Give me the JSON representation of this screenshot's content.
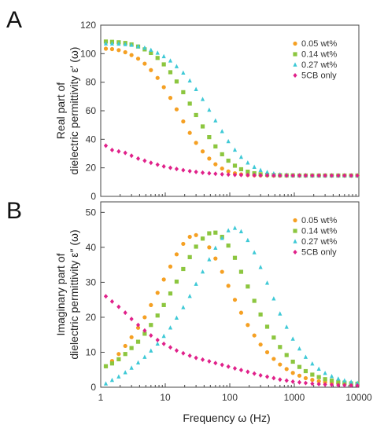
{
  "figure": {
    "panels": [
      "A",
      "B"
    ],
    "xlabel": "Frequency ω (Hz)"
  },
  "colors": {
    "0.05 wt%": "#f5a023",
    "0.14 wt%": "#8cc63f",
    "0.27 wt%": "#3ec9d6",
    "5CB only": "#e0218a"
  },
  "chart_data": [
    {
      "type": "scatter",
      "panel": "A",
      "ylabel_lines": [
        "Real part of",
        "dielectric permittivity ε′ (ω)"
      ],
      "xscale": "log",
      "xlim": [
        1,
        10000
      ],
      "ylim": [
        0,
        120
      ],
      "xticks": [
        "1",
        "10",
        "100",
        "1000",
        "10000"
      ],
      "yticks": [
        "0",
        "20",
        "40",
        "60",
        "80",
        "100",
        "120"
      ],
      "legend_position": "top-right",
      "grid": false,
      "series": [
        {
          "name": "0.05 wt%",
          "marker": "circle",
          "x": [
            1.2,
            1.5,
            1.9,
            2.4,
            3,
            3.8,
            4.8,
            6,
            7.6,
            9.5,
            12,
            15,
            19,
            24,
            30,
            38,
            48,
            60,
            76,
            95,
            120,
            150,
            190,
            240,
            300,
            380,
            480,
            600,
            760,
            950,
            1200,
            1500,
            1900,
            2400,
            3000,
            3800,
            4800,
            6000,
            7600,
            9500
          ],
          "y": [
            103.5,
            103.2,
            102.5,
            101,
            99,
            96.5,
            93,
            88.5,
            83,
            76.5,
            69,
            61,
            52.5,
            44.5,
            37.5,
            31.5,
            26.5,
            22.5,
            19.5,
            17.5,
            16.2,
            15.4,
            15,
            14.8,
            14.7,
            14.7,
            14.6,
            14.6,
            14.6,
            14.6,
            14.6,
            14.6,
            14.6,
            14.6,
            14.6,
            14.6,
            14.6,
            14.6,
            14.6,
            14.6
          ]
        },
        {
          "name": "0.14 wt%",
          "marker": "square",
          "x": [
            1.2,
            1.5,
            1.9,
            2.4,
            3,
            3.8,
            4.8,
            6,
            7.6,
            9.5,
            12,
            15,
            19,
            24,
            30,
            38,
            48,
            60,
            76,
            95,
            120,
            150,
            190,
            240,
            300,
            380,
            480,
            600,
            760,
            950,
            1200,
            1500,
            1900,
            2400,
            3000,
            3800,
            4800,
            6000,
            7600,
            9500
          ],
          "y": [
            108.5,
            108.3,
            108,
            107.5,
            106.5,
            105,
            103,
            100.5,
            97,
            92.5,
            87,
            80.5,
            73,
            65,
            57,
            49,
            41.5,
            35,
            29.5,
            25,
            21.5,
            19,
            17.3,
            16.2,
            15.5,
            15.1,
            14.9,
            14.8,
            14.7,
            14.7,
            14.6,
            14.6,
            14.6,
            14.6,
            14.6,
            14.6,
            14.6,
            14.6,
            14.6,
            14.6
          ]
        },
        {
          "name": "0.27 wt%",
          "marker": "triangle",
          "x": [
            1.2,
            1.5,
            1.9,
            2.4,
            3,
            3.8,
            4.8,
            6,
            7.6,
            9.5,
            12,
            15,
            19,
            24,
            30,
            38,
            48,
            60,
            76,
            95,
            120,
            150,
            190,
            240,
            300,
            380,
            480,
            600,
            760,
            950,
            1200,
            1500,
            1900,
            2400,
            3000,
            3800,
            4800,
            6000,
            7600,
            9500
          ],
          "y": [
            107,
            107,
            106.8,
            106.5,
            106,
            105,
            104,
            102.5,
            100.5,
            98,
            95,
            91,
            86.5,
            81,
            75,
            68,
            60.5,
            53,
            45.5,
            38.5,
            32.5,
            27.5,
            23.5,
            20.5,
            18.3,
            16.9,
            15.9,
            15.3,
            15,
            14.8,
            14.7,
            14.7,
            14.6,
            14.6,
            14.6,
            14.6,
            14.6,
            14.6,
            14.6,
            14.6
          ]
        },
        {
          "name": "5CB only",
          "marker": "diamond",
          "x": [
            1.2,
            1.5,
            1.9,
            2.4,
            3,
            3.8,
            4.8,
            6,
            7.6,
            9.5,
            12,
            15,
            19,
            24,
            30,
            38,
            48,
            60,
            76,
            95,
            120,
            150,
            190,
            240,
            300,
            380,
            480,
            600,
            760,
            950,
            1200,
            1500,
            1900,
            2400,
            3000,
            3800,
            4800,
            6000,
            7600,
            9500
          ],
          "y": [
            35.5,
            32.5,
            31.5,
            30.5,
            28.5,
            26.5,
            25,
            23.5,
            22.2,
            21,
            20,
            19.2,
            18.4,
            17.7,
            17.1,
            16.6,
            16.2,
            15.8,
            15.5,
            15.3,
            15.1,
            15,
            14.9,
            14.8,
            14.7,
            14.7,
            14.6,
            14.6,
            14.6,
            14.6,
            14.6,
            14.6,
            14.6,
            14.6,
            14.6,
            14.6,
            14.6,
            14.6,
            14.6,
            14.6
          ]
        }
      ]
    },
    {
      "type": "scatter",
      "panel": "B",
      "ylabel_lines": [
        "Imaginary part of",
        "dielectric permittivity ε″ (ω)"
      ],
      "xscale": "log",
      "xlim": [
        1,
        10000
      ],
      "ylim": [
        0,
        53
      ],
      "xticks": [
        "1",
        "10",
        "100",
        "1000",
        "10000"
      ],
      "yticks": [
        "0",
        "10",
        "20",
        "30",
        "40",
        "50"
      ],
      "legend_position": "top-right",
      "grid": false,
      "series": [
        {
          "name": "0.05 wt%",
          "marker": "circle",
          "x": [
            1.2,
            1.5,
            1.9,
            2.4,
            3,
            3.8,
            4.8,
            6,
            7.6,
            9.5,
            12,
            15,
            19,
            24,
            30,
            38,
            48,
            60,
            76,
            95,
            120,
            150,
            190,
            240,
            300,
            380,
            480,
            600,
            760,
            950,
            1200,
            1500,
            1900,
            2400,
            3000,
            3800,
            4800,
            6000,
            7600,
            9500
          ],
          "y": [
            6,
            7.5,
            9.5,
            11.8,
            14.3,
            17,
            20,
            23.5,
            27,
            30.8,
            34.5,
            38,
            41,
            43,
            43.5,
            42.5,
            40,
            36.8,
            33,
            29,
            25,
            21.3,
            17.8,
            14.8,
            12.2,
            10,
            8.1,
            6.5,
            5.2,
            4.1,
            3.3,
            2.6,
            2.1,
            1.7,
            1.4,
            1.2,
            1,
            0.9,
            0.8,
            0.7
          ]
        },
        {
          "name": "0.14 wt%",
          "marker": "square",
          "x": [
            1.2,
            1.5,
            1.9,
            2.4,
            3,
            3.8,
            4.8,
            6,
            7.6,
            9.5,
            12,
            15,
            19,
            24,
            30,
            38,
            48,
            60,
            76,
            95,
            120,
            150,
            190,
            240,
            300,
            380,
            480,
            600,
            760,
            950,
            1200,
            1500,
            1900,
            2400,
            3000,
            3800,
            4800,
            6000,
            7600,
            9500
          ],
          "y": [
            6,
            6.8,
            8,
            9.5,
            11.2,
            13,
            15.3,
            17.8,
            20.5,
            23.5,
            26.8,
            30.2,
            33.8,
            37.2,
            40.2,
            42.5,
            44,
            44.2,
            43,
            40.5,
            37,
            33,
            28.8,
            24.7,
            20.8,
            17.3,
            14.2,
            11.5,
            9.2,
            7.3,
            5.8,
            4.6,
            3.6,
            2.9,
            2.3,
            1.9,
            1.5,
            1.3,
            1.1,
            1
          ]
        },
        {
          "name": "0.27 wt%",
          "marker": "triangle",
          "x": [
            1.2,
            1.5,
            1.9,
            2.4,
            3,
            3.8,
            4.8,
            6,
            7.6,
            9.5,
            12,
            15,
            19,
            24,
            30,
            38,
            48,
            60,
            76,
            95,
            120,
            150,
            190,
            240,
            300,
            380,
            480,
            600,
            760,
            950,
            1200,
            1500,
            1900,
            2400,
            3000,
            3800,
            4800,
            6000,
            7600,
            9500
          ],
          "y": [
            1,
            2,
            3,
            4.2,
            5.5,
            7,
            8.6,
            10.4,
            12.4,
            14.6,
            17,
            19.8,
            22.8,
            26,
            29.5,
            33,
            36.5,
            39.8,
            42.6,
            44.8,
            45.5,
            44.5,
            42,
            38.5,
            34.3,
            29.8,
            25.3,
            21,
            17.2,
            13.8,
            11,
            8.6,
            6.7,
            5.2,
            4,
            3.1,
            2.4,
            1.9,
            1.5,
            1.2
          ]
        },
        {
          "name": "5CB only",
          "marker": "diamond",
          "x": [
            1.2,
            1.5,
            1.9,
            2.4,
            3,
            3.8,
            4.8,
            6,
            7.6,
            9.5,
            12,
            15,
            19,
            24,
            30,
            38,
            48,
            60,
            76,
            95,
            120,
            150,
            190,
            240,
            300,
            380,
            480,
            600,
            760,
            950,
            1200,
            1500,
            1900,
            2400,
            3000,
            3800,
            4800,
            6000,
            7600,
            9500
          ],
          "y": [
            26,
            24.5,
            23,
            21.3,
            19.5,
            17.8,
            16.2,
            14.8,
            13.5,
            12.4,
            11.4,
            10.5,
            9.7,
            9,
            8.4,
            7.9,
            7.4,
            6.9,
            6.4,
            5.9,
            5.4,
            4.9,
            4.4,
            3.9,
            3.4,
            3,
            2.6,
            2.2,
            1.9,
            1.6,
            1.4,
            1.2,
            1,
            0.9,
            0.8,
            0.7,
            0.6,
            0.6,
            0.5,
            0.5
          ]
        }
      ]
    }
  ]
}
